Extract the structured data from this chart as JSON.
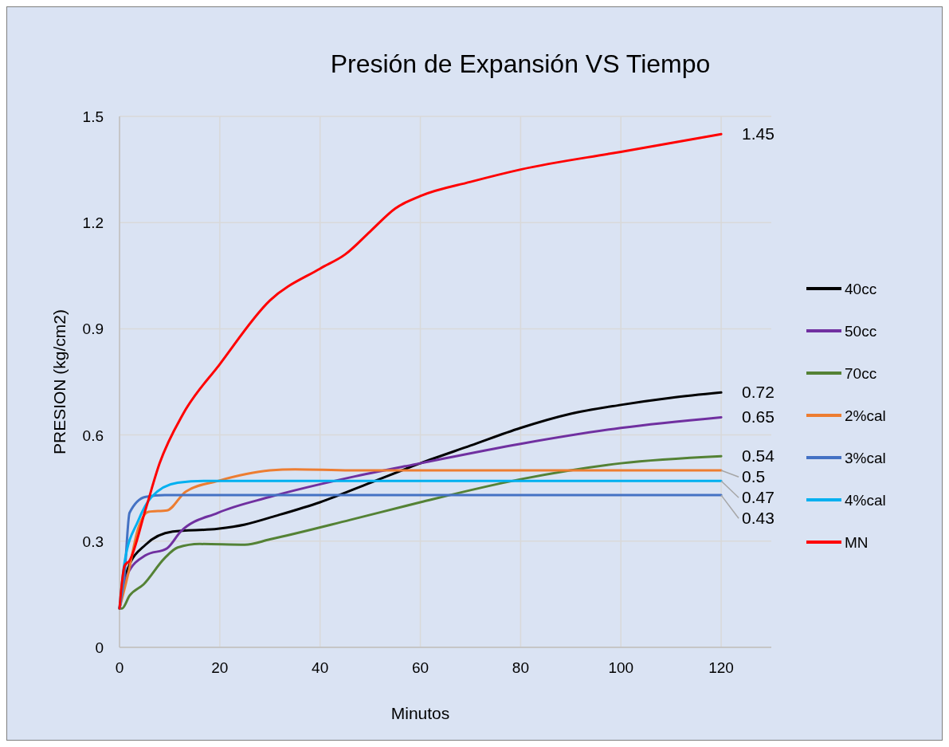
{
  "chart_data": {
    "type": "line",
    "title": "Presión de Expansión VS Tiempo",
    "xlabel": "Minutos",
    "ylabel": "PRESION (kg/cm2)",
    "xlim": [
      0,
      130
    ],
    "xticks": [
      0,
      20,
      40,
      60,
      80,
      100,
      120
    ],
    "ylim": [
      0,
      1.5
    ],
    "yticks": [
      0,
      0.3,
      0.6,
      0.9,
      1.2,
      1.5
    ],
    "grid": true,
    "legend": "right",
    "marker": "none",
    "line_style": "solid",
    "series": [
      {
        "name": "40cc",
        "color": "#000000",
        "x": [
          0,
          1.6,
          5.2,
          10.6,
          19.6,
          25,
          31.3,
          40,
          50,
          60,
          70,
          80,
          90,
          100,
          110,
          120
        ],
        "values": [
          0.11,
          0.22,
          0.29,
          0.327,
          0.335,
          0.347,
          0.372,
          0.41,
          0.465,
          0.52,
          0.57,
          0.62,
          0.66,
          0.685,
          0.705,
          0.72
        ],
        "value_labels": [
          null,
          null,
          null,
          null,
          null,
          null,
          null,
          null,
          null,
          null,
          null,
          null,
          null,
          null,
          null,
          "0.72"
        ]
      },
      {
        "name": "50cc",
        "color": "#7030a0",
        "x": [
          0,
          1.6,
          5.2,
          9.5,
          12.2,
          19.6,
          30,
          46,
          60,
          80,
          100,
          120
        ],
        "values": [
          0.11,
          0.207,
          0.26,
          0.28,
          0.327,
          0.38,
          0.425,
          0.48,
          0.52,
          0.575,
          0.62,
          0.65
        ],
        "value_labels": [
          null,
          null,
          null,
          null,
          null,
          null,
          null,
          null,
          null,
          null,
          null,
          "0.65"
        ]
      },
      {
        "name": "70cc",
        "color": "#548235",
        "x": [
          0,
          0.5,
          2,
          4.8,
          9,
          11.6,
          16,
          25,
          30,
          46,
          60,
          80,
          100,
          120
        ],
        "values": [
          0.11,
          0.11,
          0.146,
          0.178,
          0.252,
          0.282,
          0.292,
          0.29,
          0.305,
          0.36,
          0.41,
          0.475,
          0.52,
          0.54
        ],
        "value_labels": [
          null,
          null,
          null,
          null,
          null,
          null,
          null,
          null,
          null,
          null,
          null,
          null,
          null,
          "0.54"
        ]
      },
      {
        "name": "2%cal",
        "color": "#ed7d31",
        "x": [
          0,
          1.6,
          3.7,
          5.8,
          9.5,
          13.2,
          19.6,
          30,
          35,
          46,
          60,
          120
        ],
        "values": [
          0.11,
          0.2,
          0.335,
          0.383,
          0.387,
          0.44,
          0.47,
          0.5,
          0.503,
          0.5,
          0.5,
          0.5
        ],
        "value_labels": [
          null,
          null,
          null,
          null,
          null,
          null,
          null,
          null,
          null,
          null,
          null,
          "0.5"
        ]
      },
      {
        "name": "3%cal",
        "color": "#4472c4",
        "x": [
          0,
          1,
          2,
          5.2,
          9,
          20,
          120
        ],
        "values": [
          0.11,
          0.207,
          0.38,
          0.425,
          0.43,
          0.43,
          0.43
        ],
        "value_labels": [
          null,
          null,
          null,
          null,
          null,
          null,
          "0.43"
        ]
      },
      {
        "name": "4%cal",
        "color": "#00b0f0",
        "x": [
          0,
          1,
          3.7,
          6.4,
          11.6,
          17,
          30,
          120
        ],
        "values": [
          0.11,
          0.24,
          0.357,
          0.425,
          0.465,
          0.47,
          0.47,
          0.47
        ],
        "value_labels": [
          null,
          null,
          null,
          null,
          null,
          null,
          null,
          "0.47"
        ]
      },
      {
        "name": "MN",
        "color": "#ff0000",
        "x": [
          0,
          1,
          2,
          5.2,
          8,
          12.7,
          20,
          30,
          40,
          45,
          50,
          55,
          60,
          70,
          80,
          100,
          120
        ],
        "values": [
          0.11,
          0.23,
          0.245,
          0.39,
          0.52,
          0.66,
          0.8,
          0.98,
          1.07,
          1.11,
          1.175,
          1.24,
          1.275,
          1.315,
          1.35,
          1.4,
          1.45
        ],
        "value_labels": [
          null,
          null,
          null,
          null,
          null,
          null,
          null,
          null,
          null,
          null,
          null,
          null,
          null,
          null,
          null,
          null,
          "1.45"
        ]
      }
    ]
  }
}
